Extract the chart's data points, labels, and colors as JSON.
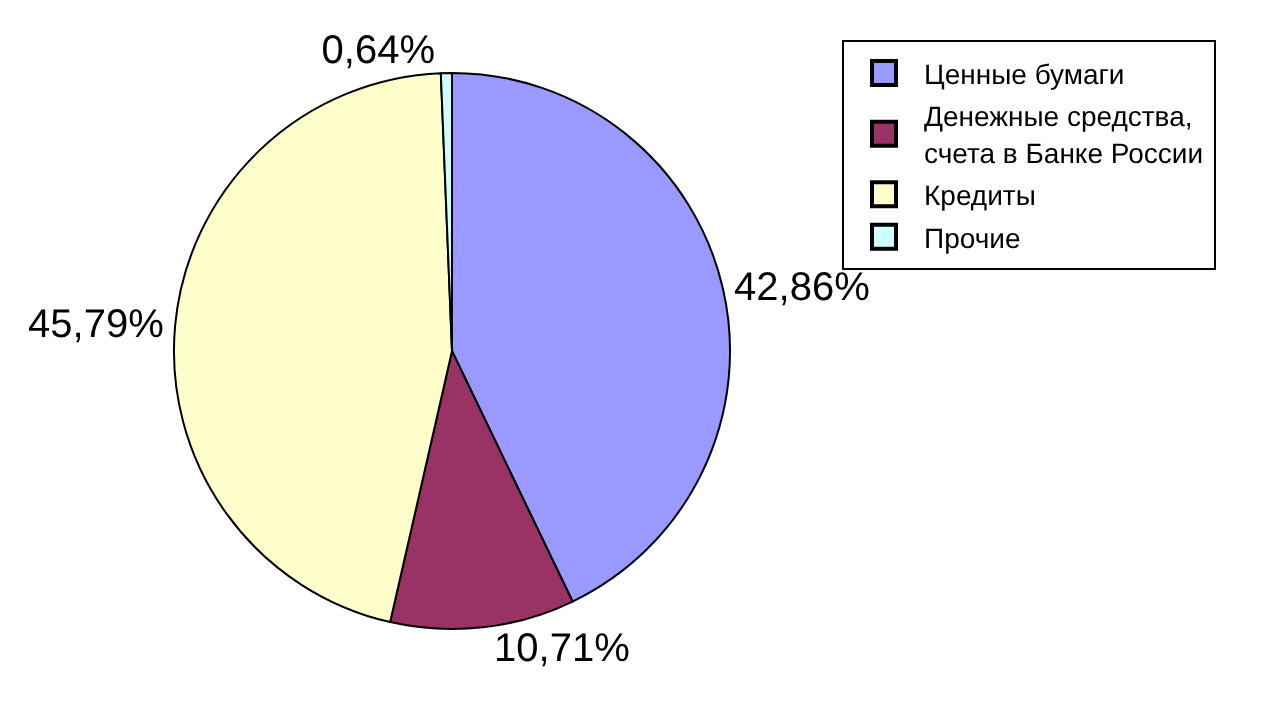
{
  "chart_data": {
    "type": "pie",
    "categories": [
      "Ценные бумаги",
      "Денежные средства, счета в Банке России",
      "Кредиты",
      "Прочие"
    ],
    "values": [
      42.86,
      10.71,
      45.79,
      0.64
    ],
    "value_labels": [
      "42,86%",
      "10,71%",
      "45,79%",
      "0,64%"
    ],
    "colors": [
      "#9999ff",
      "#993366",
      "#ffffcc",
      "#ccffff"
    ],
    "legend": "right"
  }
}
